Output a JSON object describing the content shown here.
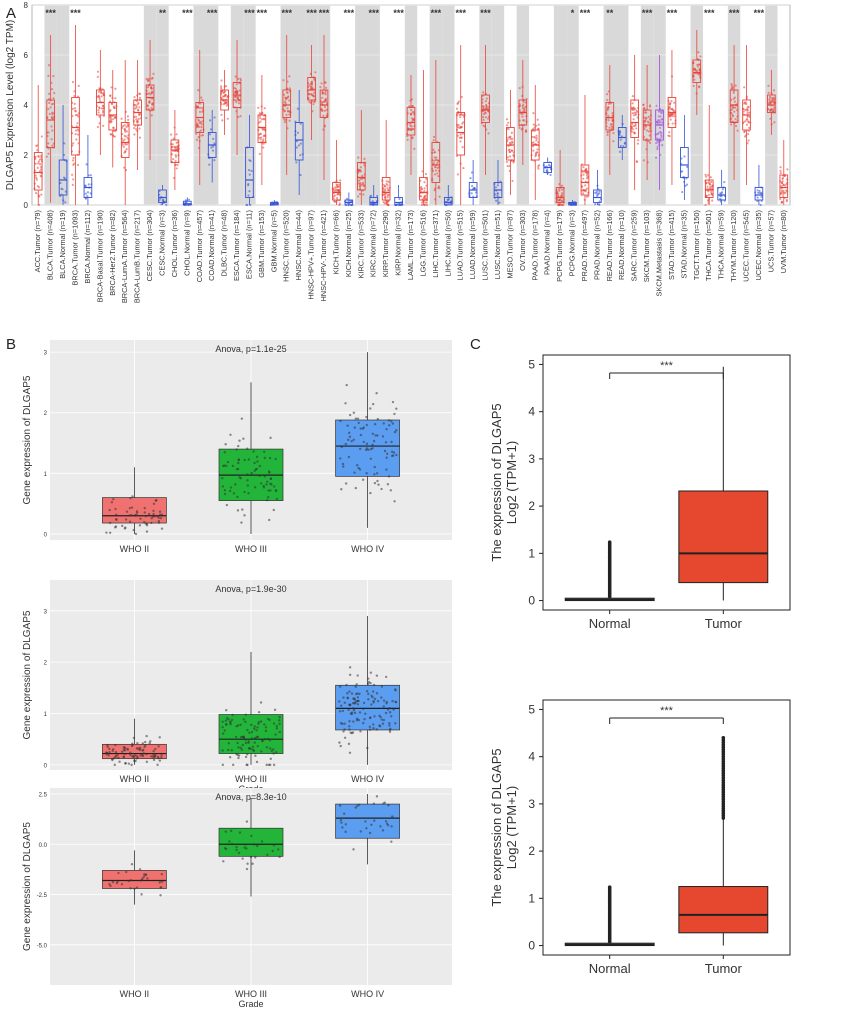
{
  "panels": {
    "A": "A",
    "B": "B",
    "C": "C"
  },
  "colors": {
    "tumor": "#e8443a",
    "normal": "#3553d4",
    "metastasis": "#9b4fd6",
    "who2": "#f07270",
    "who3": "#22b53a",
    "who4": "#5b9df0",
    "c_tumor": "#e5472f",
    "shade": "#d9d9d9",
    "panelbg": "#ebebeb"
  },
  "chart_data": [
    {
      "panel": "A",
      "type": "box",
      "ylabel": "DLGAP5 Expression Level (log2 TPM)",
      "ylim": [
        0,
        8
      ],
      "yticks": [
        0,
        2,
        4,
        6,
        8
      ],
      "categories": [
        {
          "label": "ACC.Tumor (n=79)",
          "kind": "tumor",
          "q1": 0.6,
          "med": 1.3,
          "q3": 2.1,
          "lo": 0.0,
          "hi": 4.8,
          "sig": ""
        },
        {
          "label": "BLCA.Tumor (n=408)",
          "kind": "tumor",
          "q1": 2.3,
          "med": 3.4,
          "q3": 4.2,
          "lo": 0.1,
          "hi": 6.8,
          "sig": "***"
        },
        {
          "label": "BLCA.Normal (n=19)",
          "kind": "normal",
          "q1": 0.4,
          "med": 1.0,
          "q3": 1.8,
          "lo": 0.0,
          "hi": 4.0,
          "sig": ""
        },
        {
          "label": "BRCA.Tumor (n=1093)",
          "kind": "tumor",
          "q1": 2.0,
          "med": 3.1,
          "q3": 4.3,
          "lo": 0.0,
          "hi": 7.2,
          "sig": "***"
        },
        {
          "label": "BRCA.Normal (n=112)",
          "kind": "normal",
          "q1": 0.3,
          "med": 0.7,
          "q3": 1.1,
          "lo": 0.0,
          "hi": 2.8,
          "sig": ""
        },
        {
          "label": "BRCA-Basal.Tumor (n=190)",
          "kind": "tumor",
          "q1": 3.6,
          "med": 4.1,
          "q3": 4.6,
          "lo": 2.0,
          "hi": 6.2,
          "sig": ""
        },
        {
          "label": "BRCA-Her2.Tumor (n=82)",
          "kind": "tumor",
          "q1": 3.0,
          "med": 3.6,
          "q3": 4.1,
          "lo": 1.5,
          "hi": 5.4,
          "sig": ""
        },
        {
          "label": "BRCA-LumA.Tumor (n=564)",
          "kind": "tumor",
          "q1": 1.9,
          "med": 2.5,
          "q3": 3.3,
          "lo": 0.0,
          "hi": 5.8,
          "sig": ""
        },
        {
          "label": "BRCA-LumB.Tumor (n=217)",
          "kind": "tumor",
          "q1": 3.2,
          "med": 3.7,
          "q3": 4.2,
          "lo": 1.4,
          "hi": 5.8,
          "sig": ""
        },
        {
          "label": "CESC.Tumor (n=304)",
          "kind": "tumor",
          "q1": 3.8,
          "med": 4.3,
          "q3": 4.8,
          "lo": 1.8,
          "hi": 6.6,
          "sig": ""
        },
        {
          "label": "CESC.Normal (n=3)",
          "kind": "normal",
          "q1": 0.1,
          "med": 0.3,
          "q3": 0.6,
          "lo": 0.0,
          "hi": 0.8,
          "sig": "**"
        },
        {
          "label": "CHOL.Tumor (n=36)",
          "kind": "tumor",
          "q1": 1.7,
          "med": 2.2,
          "q3": 2.6,
          "lo": 0.6,
          "hi": 3.8,
          "sig": ""
        },
        {
          "label": "CHOL.Normal (n=9)",
          "kind": "normal",
          "q1": 0.0,
          "med": 0.05,
          "q3": 0.15,
          "lo": 0.0,
          "hi": 0.3,
          "sig": "***"
        },
        {
          "label": "COAD.Tumor (n=457)",
          "kind": "tumor",
          "q1": 2.9,
          "med": 3.5,
          "q3": 4.1,
          "lo": 0.8,
          "hi": 6.2,
          "sig": ""
        },
        {
          "label": "COAD.Normal (n=41)",
          "kind": "normal",
          "q1": 1.9,
          "med": 2.4,
          "q3": 2.9,
          "lo": 0.9,
          "hi": 3.8,
          "sig": "***"
        },
        {
          "label": "DLBC.Tumor (n=48)",
          "kind": "tumor",
          "q1": 3.8,
          "med": 4.2,
          "q3": 4.6,
          "lo": 2.8,
          "hi": 5.4,
          "sig": ""
        },
        {
          "label": "ESCA.Tumor (n=184)",
          "kind": "tumor",
          "q1": 3.9,
          "med": 4.4,
          "q3": 4.9,
          "lo": 2.0,
          "hi": 6.6,
          "sig": ""
        },
        {
          "label": "ESCA.Normal (n=11)",
          "kind": "normal",
          "q1": 0.3,
          "med": 1.0,
          "q3": 2.3,
          "lo": 0.0,
          "hi": 3.6,
          "sig": "***"
        },
        {
          "label": "GBM.Tumor (n=153)",
          "kind": "tumor",
          "q1": 2.5,
          "med": 3.1,
          "q3": 3.6,
          "lo": 0.8,
          "hi": 5.2,
          "sig": "***"
        },
        {
          "label": "GBM.Normal (n=5)",
          "kind": "normal",
          "q1": 0.0,
          "med": 0.05,
          "q3": 0.1,
          "lo": 0.0,
          "hi": 0.2,
          "sig": ""
        },
        {
          "label": "HNSC.Tumor (n=520)",
          "kind": "tumor",
          "q1": 3.5,
          "med": 4.0,
          "q3": 4.6,
          "lo": 1.2,
          "hi": 6.8,
          "sig": "***"
        },
        {
          "label": "HNSC.Normal (n=44)",
          "kind": "normal",
          "q1": 1.8,
          "med": 2.6,
          "q3": 3.3,
          "lo": 0.4,
          "hi": 4.6,
          "sig": ""
        },
        {
          "label": "HNSC-HPV+.Tumor (n=97)",
          "kind": "tumor",
          "q1": 4.2,
          "med": 4.6,
          "q3": 5.1,
          "lo": 2.6,
          "hi": 6.4,
          "sig": "***"
        },
        {
          "label": "HNSC-HPV-.Tumor (n=421)",
          "kind": "tumor",
          "q1": 3.5,
          "med": 4.0,
          "q3": 4.6,
          "lo": 1.0,
          "hi": 6.8,
          "sig": "***"
        },
        {
          "label": "KICH.Tumor (n=66)",
          "kind": "tumor",
          "q1": 0.2,
          "med": 0.5,
          "q3": 0.9,
          "lo": 0.0,
          "hi": 2.6,
          "sig": ""
        },
        {
          "label": "KICH.Normal (n=25)",
          "kind": "normal",
          "q1": 0.0,
          "med": 0.1,
          "q3": 0.2,
          "lo": 0.0,
          "hi": 0.5,
          "sig": "***"
        },
        {
          "label": "KIRC.Tumor (n=533)",
          "kind": "tumor",
          "q1": 0.6,
          "med": 1.1,
          "q3": 1.7,
          "lo": 0.0,
          "hi": 3.8,
          "sig": ""
        },
        {
          "label": "KIRC.Normal (n=72)",
          "kind": "normal",
          "q1": 0.0,
          "med": 0.1,
          "q3": 0.3,
          "lo": 0.0,
          "hi": 0.8,
          "sig": "***"
        },
        {
          "label": "KIRP.Tumor (n=290)",
          "kind": "tumor",
          "q1": 0.2,
          "med": 0.5,
          "q3": 1.1,
          "lo": 0.0,
          "hi": 3.4,
          "sig": ""
        },
        {
          "label": "KIRP.Normal (n=32)",
          "kind": "normal",
          "q1": 0.0,
          "med": 0.1,
          "q3": 0.3,
          "lo": 0.0,
          "hi": 0.8,
          "sig": "***"
        },
        {
          "label": "LAML.Tumor (n=173)",
          "kind": "tumor",
          "q1": 2.8,
          "med": 3.3,
          "q3": 3.9,
          "lo": 1.2,
          "hi": 5.2,
          "sig": ""
        },
        {
          "label": "LGG.Tumor (n=516)",
          "kind": "tumor",
          "q1": 0.2,
          "med": 0.5,
          "q3": 1.1,
          "lo": 0.0,
          "hi": 5.4,
          "sig": ""
        },
        {
          "label": "LIHC.Tumor (n=371)",
          "kind": "tumor",
          "q1": 0.9,
          "med": 1.6,
          "q3": 2.5,
          "lo": 0.0,
          "hi": 5.8,
          "sig": "***"
        },
        {
          "label": "LIHC.Normal (n=50)",
          "kind": "normal",
          "q1": 0.0,
          "med": 0.1,
          "q3": 0.3,
          "lo": 0.0,
          "hi": 0.8,
          "sig": ""
        },
        {
          "label": "LUAD.Tumor (n=515)",
          "kind": "tumor",
          "q1": 2.0,
          "med": 2.9,
          "q3": 3.7,
          "lo": 0.0,
          "hi": 6.4,
          "sig": "***"
        },
        {
          "label": "LUAD.Normal (n=59)",
          "kind": "normal",
          "q1": 0.3,
          "med": 0.6,
          "q3": 0.9,
          "lo": 0.0,
          "hi": 1.8,
          "sig": ""
        },
        {
          "label": "LUSC.Tumor (n=501)",
          "kind": "tumor",
          "q1": 3.3,
          "med": 3.8,
          "q3": 4.4,
          "lo": 1.2,
          "hi": 6.4,
          "sig": "***"
        },
        {
          "label": "LUSC.Normal (n=51)",
          "kind": "normal",
          "q1": 0.3,
          "med": 0.6,
          "q3": 0.9,
          "lo": 0.0,
          "hi": 1.8,
          "sig": ""
        },
        {
          "label": "MESO.Tumor (n=87)",
          "kind": "tumor",
          "q1": 1.8,
          "med": 2.4,
          "q3": 3.1,
          "lo": 0.4,
          "hi": 4.6,
          "sig": ""
        },
        {
          "label": "OV.Tumor (n=303)",
          "kind": "tumor",
          "q1": 3.2,
          "med": 3.7,
          "q3": 4.2,
          "lo": 1.6,
          "hi": 5.8,
          "sig": ""
        },
        {
          "label": "PAAD.Tumor (n=178)",
          "kind": "tumor",
          "q1": 1.8,
          "med": 2.4,
          "q3": 3.0,
          "lo": 0.2,
          "hi": 4.8,
          "sig": ""
        },
        {
          "label": "PAAD.Normal (n=4)",
          "kind": "normal",
          "q1": 1.3,
          "med": 1.5,
          "q3": 1.7,
          "lo": 1.2,
          "hi": 1.9,
          "sig": ""
        },
        {
          "label": "PCPG.Tumor (n=179)",
          "kind": "tumor",
          "q1": 0.1,
          "med": 0.3,
          "q3": 0.7,
          "lo": 0.0,
          "hi": 2.2,
          "sig": ""
        },
        {
          "label": "PCPG.Normal (n=3)",
          "kind": "normal",
          "q1": 0.0,
          "med": 0.05,
          "q3": 0.1,
          "lo": 0.0,
          "hi": 0.2,
          "sig": "*"
        },
        {
          "label": "PRAD.Tumor (n=497)",
          "kind": "tumor",
          "q1": 0.4,
          "med": 0.9,
          "q3": 1.6,
          "lo": 0.0,
          "hi": 4.4,
          "sig": "***"
        },
        {
          "label": "PRAD.Normal (n=52)",
          "kind": "normal",
          "q1": 0.1,
          "med": 0.3,
          "q3": 0.6,
          "lo": 0.0,
          "hi": 1.4,
          "sig": ""
        },
        {
          "label": "READ.Tumor (n=166)",
          "kind": "tumor",
          "q1": 3.0,
          "med": 3.5,
          "q3": 4.1,
          "lo": 1.2,
          "hi": 5.6,
          "sig": "**"
        },
        {
          "label": "READ.Normal (n=10)",
          "kind": "normal",
          "q1": 2.3,
          "med": 2.7,
          "q3": 3.1,
          "lo": 1.8,
          "hi": 3.6,
          "sig": ""
        },
        {
          "label": "SARC.Tumor (n=259)",
          "kind": "tumor",
          "q1": 2.7,
          "med": 3.3,
          "q3": 4.2,
          "lo": 0.6,
          "hi": 6.0,
          "sig": ""
        },
        {
          "label": "SKCM.Tumor (n=103)",
          "kind": "tumor",
          "q1": 2.6,
          "med": 3.2,
          "q3": 3.8,
          "lo": 1.0,
          "hi": 5.6,
          "sig": "***"
        },
        {
          "label": "SKCM.Metastasis (n=368)",
          "kind": "metastasis",
          "q1": 2.6,
          "med": 3.2,
          "q3": 3.8,
          "lo": 0.6,
          "hi": 6.0,
          "sig": ""
        },
        {
          "label": "STAD.Tumor (n=415)",
          "kind": "tumor",
          "q1": 3.1,
          "med": 3.7,
          "q3": 4.3,
          "lo": 0.8,
          "hi": 6.2,
          "sig": "***"
        },
        {
          "label": "STAD.Normal (n=35)",
          "kind": "normal",
          "q1": 1.1,
          "med": 1.6,
          "q3": 2.3,
          "lo": 0.2,
          "hi": 3.6,
          "sig": ""
        },
        {
          "label": "TGCT.Tumor (n=150)",
          "kind": "tumor",
          "q1": 4.9,
          "med": 5.3,
          "q3": 5.8,
          "lo": 3.6,
          "hi": 7.0,
          "sig": ""
        },
        {
          "label": "THCA.Tumor (n=501)",
          "kind": "tumor",
          "q1": 0.3,
          "med": 0.6,
          "q3": 1.0,
          "lo": 0.0,
          "hi": 4.0,
          "sig": "***"
        },
        {
          "label": "THCA.Normal (n=59)",
          "kind": "normal",
          "q1": 0.2,
          "med": 0.4,
          "q3": 0.7,
          "lo": 0.0,
          "hi": 1.4,
          "sig": ""
        },
        {
          "label": "THYM.Tumor (n=120)",
          "kind": "tumor",
          "q1": 3.3,
          "med": 4.0,
          "q3": 4.6,
          "lo": 1.0,
          "hi": 6.4,
          "sig": "***"
        },
        {
          "label": "UCEC.Tumor (n=545)",
          "kind": "tumor",
          "q1": 3.0,
          "med": 3.6,
          "q3": 4.2,
          "lo": 0.8,
          "hi": 6.4,
          "sig": ""
        },
        {
          "label": "UCEC.Normal (n=35)",
          "kind": "normal",
          "q1": 0.2,
          "med": 0.4,
          "q3": 0.7,
          "lo": 0.0,
          "hi": 1.6,
          "sig": "***"
        },
        {
          "label": "UCS.Tumor (n=57)",
          "kind": "tumor",
          "q1": 3.7,
          "med": 4.0,
          "q3": 4.4,
          "lo": 2.8,
          "hi": 5.4,
          "sig": ""
        },
        {
          "label": "UVM.Tumor (n=80)",
          "kind": "tumor",
          "q1": 0.3,
          "med": 0.7,
          "q3": 1.2,
          "lo": 0.0,
          "hi": 2.6,
          "sig": ""
        }
      ]
    },
    {
      "panel": "B1",
      "type": "box",
      "title": "Anova, p=1.1e-25",
      "ylabel": "Gene expression of DLGAP5",
      "xlabel": "",
      "ylim": [
        -0.1,
        3.2
      ],
      "yticks": [
        0,
        1,
        2,
        3
      ],
      "categories": [
        "WHO II",
        "WHO III",
        "WHO IV"
      ],
      "groups": [
        {
          "q1": 0.18,
          "med": 0.3,
          "q3": 0.6,
          "lo": 0.0,
          "hi": 1.1,
          "n": 60
        },
        {
          "q1": 0.55,
          "med": 0.97,
          "q3": 1.4,
          "lo": 0.0,
          "hi": 2.5,
          "n": 80
        },
        {
          "q1": 0.95,
          "med": 1.45,
          "q3": 1.88,
          "lo": 0.1,
          "hi": 3.0,
          "n": 90
        }
      ]
    },
    {
      "panel": "B2",
      "type": "box",
      "title": "Anova, p=1.9e-30",
      "ylabel": "Gene expression of DLGAP5",
      "xlabel": "Grade",
      "ylim": [
        -0.1,
        3.6
      ],
      "yticks": [
        0,
        1,
        2,
        3
      ],
      "categories": [
        "WHO II",
        "WHO III",
        "WHO IV"
      ],
      "groups": [
        {
          "q1": 0.12,
          "med": 0.22,
          "q3": 0.4,
          "lo": 0.0,
          "hi": 0.9,
          "n": 90
        },
        {
          "q1": 0.22,
          "med": 0.5,
          "q3": 0.98,
          "lo": 0.0,
          "hi": 2.2,
          "n": 110
        },
        {
          "q1": 0.68,
          "med": 1.1,
          "q3": 1.55,
          "lo": 0.0,
          "hi": 2.9,
          "n": 130
        }
      ]
    },
    {
      "panel": "B3",
      "type": "box",
      "title": "Anova, p=8.3e-10",
      "ylabel": "Gene expression of DLGAP5",
      "xlabel": "Grade",
      "ylim": [
        -7.0,
        2.8
      ],
      "yticks": [
        2.5,
        0.0,
        -2.5,
        -5.0
      ],
      "ytick_labels": [
        "2.5",
        "0.0",
        "-2.5",
        "-5.0"
      ],
      "categories": [
        "WHO II",
        "WHO III",
        "WHO IV"
      ],
      "groups": [
        {
          "q1": -2.2,
          "med": -1.8,
          "q3": -1.3,
          "lo": -3.0,
          "hi": -0.3,
          "n": 30
        },
        {
          "q1": -0.6,
          "med": 0.0,
          "q3": 0.8,
          "lo": -2.6,
          "hi": 2.3,
          "n": 30
        },
        {
          "q1": 0.3,
          "med": 1.3,
          "q3": 2.0,
          "lo": -1.0,
          "hi": 2.5,
          "n": 30
        }
      ]
    },
    {
      "panel": "C1",
      "type": "box",
      "ylabel": "The expression of DLGAP5",
      "ylabel2": "Log2 (TPM+1)",
      "ylim": [
        -0.2,
        5.2
      ],
      "yticks": [
        0,
        1,
        2,
        3,
        4,
        5
      ],
      "categories": [
        "Normal",
        "Tumor"
      ],
      "sig": "***",
      "groups": [
        {
          "q1": 0.0,
          "med": 0.02,
          "q3": 0.05,
          "lo": 0.0,
          "hi": 0.05,
          "outliers_max": 1.25
        },
        {
          "q1": 0.38,
          "med": 1.0,
          "q3": 2.32,
          "lo": 0.0,
          "hi": 4.95
        }
      ]
    },
    {
      "panel": "C2",
      "type": "box",
      "ylabel": "The expression of DLGAP5",
      "ylabel2": "Log2 (TPM+1)",
      "ylim": [
        -0.2,
        5.2
      ],
      "yticks": [
        0,
        1,
        2,
        3,
        4,
        5
      ],
      "categories": [
        "Normal",
        "Tumor"
      ],
      "sig": "***",
      "groups": [
        {
          "q1": 0.0,
          "med": 0.02,
          "q3": 0.05,
          "lo": 0.0,
          "hi": 0.05,
          "outliers_max": 1.25
        },
        {
          "q1": 0.27,
          "med": 0.65,
          "q3": 1.25,
          "lo": 0.0,
          "hi": 2.7,
          "outliers_max": 4.4
        }
      ]
    }
  ]
}
